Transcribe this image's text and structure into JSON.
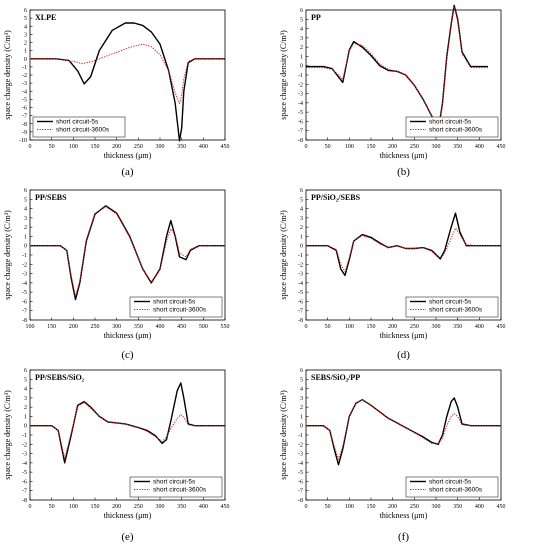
{
  "colors": {
    "series_5s": "#000000",
    "series_3600s": "#d62020"
  },
  "chart_data": [
    {
      "type": "line",
      "panel_title": "XLPE",
      "caption": "(a)",
      "xlabel": "thickness (μm)",
      "ylabel": "space charge density (C/m³)",
      "xlim": [
        0,
        450
      ],
      "xticks": [
        0,
        50,
        100,
        150,
        200,
        250,
        300,
        350,
        400,
        450
      ],
      "ylim": [
        -10,
        6
      ],
      "yticks": [
        -10,
        -9,
        -8,
        -7,
        -6,
        -5,
        -4,
        -3,
        -2,
        -1,
        0,
        1,
        2,
        3,
        4,
        5,
        6
      ],
      "legend_position": "bottom-left",
      "series": [
        {
          "name": "short circuit-5s",
          "x": [
            0,
            60,
            90,
            110,
            125,
            140,
            160,
            190,
            220,
            240,
            260,
            280,
            300,
            320,
            335,
            345,
            350,
            355,
            365,
            380,
            400,
            450
          ],
          "y": [
            0,
            0,
            -0.2,
            -1.5,
            -3.1,
            -2.2,
            1.0,
            3.5,
            4.4,
            4.4,
            4.1,
            3.3,
            1.8,
            -1.5,
            -5.5,
            -10.1,
            -8.5,
            -4.0,
            -0.5,
            0,
            0,
            0
          ]
        },
        {
          "name": "short circuit-3600s",
          "x": [
            0,
            60,
            100,
            120,
            140,
            170,
            200,
            230,
            260,
            280,
            300,
            320,
            335,
            345,
            350,
            355,
            365,
            380,
            400,
            450
          ],
          "y": [
            0,
            0,
            -0.3,
            -0.6,
            -0.4,
            0.2,
            0.8,
            1.4,
            1.8,
            1.5,
            0.5,
            -1.5,
            -4.2,
            -5.5,
            -4.5,
            -2.5,
            -0.3,
            0,
            0,
            0
          ]
        }
      ]
    },
    {
      "type": "line",
      "panel_title": "PP",
      "caption": "(b)",
      "xlabel": "thickness (μm)",
      "ylabel": "space charge density (C/m³)",
      "xlim": [
        0,
        450
      ],
      "xticks": [
        0,
        50,
        100,
        150,
        200,
        250,
        300,
        350,
        400,
        450
      ],
      "ylim": [
        -8,
        6
      ],
      "yticks": [
        -8,
        -7,
        -6,
        -5,
        -4,
        -3,
        -2,
        -1,
        0,
        1,
        2,
        3,
        4,
        5,
        6
      ],
      "legend_position": "bottom-right",
      "series": [
        {
          "name": "short circuit-5s",
          "x": [
            0,
            40,
            60,
            75,
            85,
            100,
            110,
            130,
            150,
            170,
            190,
            210,
            230,
            250,
            270,
            290,
            305,
            315,
            325,
            335,
            342,
            350,
            360,
            380,
            400,
            420
          ],
          "y": [
            -0.1,
            -0.1,
            -0.3,
            -1.2,
            -1.8,
            1.7,
            2.6,
            2.0,
            1.1,
            0,
            -0.5,
            -0.6,
            -1.0,
            -2.1,
            -3.6,
            -5.4,
            -7.1,
            -4.0,
            1.0,
            4.5,
            6.5,
            5.0,
            1.5,
            -0.1,
            -0.1,
            -0.1
          ]
        },
        {
          "name": "short circuit-3600s",
          "x": [
            0,
            40,
            60,
            75,
            85,
            100,
            110,
            130,
            150,
            170,
            190,
            210,
            230,
            250,
            270,
            290,
            305,
            315,
            325,
            335,
            342,
            350,
            360,
            380,
            400,
            420
          ],
          "y": [
            -0.2,
            -0.2,
            -0.4,
            -1.0,
            -1.5,
            1.6,
            2.4,
            2.2,
            1.3,
            0.2,
            -0.4,
            -0.6,
            -1.0,
            -2.1,
            -3.6,
            -5.4,
            -7.0,
            -4.2,
            0.8,
            4.3,
            6.3,
            4.8,
            1.3,
            -0.2,
            -0.2,
            -0.2
          ]
        }
      ]
    },
    {
      "type": "line",
      "panel_title": "PP/SEBS",
      "caption": "(c)",
      "xlabel": "thickness (μm)",
      "ylabel": "space charge density (C/m³)",
      "xlim": [
        100,
        550
      ],
      "xticks": [
        100,
        150,
        200,
        250,
        300,
        350,
        400,
        450,
        500,
        550
      ],
      "ylim": [
        -8,
        6
      ],
      "yticks": [
        -8,
        -7,
        -6,
        -5,
        -4,
        -3,
        -2,
        -1,
        0,
        1,
        2,
        3,
        4,
        5,
        6
      ],
      "legend_position": "bottom-right",
      "series": [
        {
          "name": "short circuit-5s",
          "x": [
            100,
            170,
            185,
            195,
            205,
            215,
            230,
            250,
            275,
            300,
            330,
            360,
            380,
            400,
            415,
            425,
            435,
            445,
            460,
            470,
            490,
            510,
            550
          ],
          "y": [
            0,
            0,
            -0.5,
            -3.5,
            -5.8,
            -4.0,
            0.5,
            3.4,
            4.3,
            3.5,
            1.0,
            -2.5,
            -4.0,
            -2.5,
            1.0,
            2.7,
            1.0,
            -1.2,
            -1.5,
            -0.5,
            0,
            0,
            0
          ]
        },
        {
          "name": "short circuit-3600s",
          "x": [
            100,
            170,
            185,
            195,
            205,
            215,
            230,
            250,
            275,
            300,
            330,
            360,
            380,
            400,
            415,
            425,
            435,
            445,
            460,
            470,
            490,
            510,
            550
          ],
          "y": [
            0,
            0,
            -0.5,
            -3.2,
            -5.4,
            -3.8,
            0.6,
            3.5,
            4.2,
            3.4,
            0.9,
            -2.5,
            -3.9,
            -2.6,
            0.5,
            1.8,
            1.2,
            -0.8,
            -1.2,
            -0.4,
            0,
            0,
            0
          ]
        }
      ]
    },
    {
      "type": "line",
      "panel_title": "PP/SiO₂/SEBS",
      "caption": "(d)",
      "xlabel": "thickness (μm)",
      "ylabel": "space charge density (C/m³)",
      "xlim": [
        0,
        450
      ],
      "xticks": [
        0,
        50,
        100,
        150,
        200,
        250,
        300,
        350,
        400,
        450
      ],
      "ylim": [
        -8,
        6
      ],
      "yticks": [
        -8,
        -7,
        -6,
        -5,
        -4,
        -3,
        -2,
        -1,
        0,
        1,
        2,
        3,
        4,
        5,
        6
      ],
      "legend_position": "bottom-right",
      "series": [
        {
          "name": "short circuit-5s",
          "x": [
            0,
            50,
            70,
            80,
            90,
            100,
            110,
            130,
            150,
            170,
            190,
            210,
            230,
            250,
            270,
            290,
            310,
            320,
            335,
            345,
            355,
            370,
            400,
            450
          ],
          "y": [
            0,
            0,
            -0.5,
            -2.5,
            -3.2,
            -1.5,
            0.5,
            1.2,
            0.9,
            0.3,
            -0.2,
            0,
            -0.3,
            -0.3,
            -0.2,
            -0.5,
            -1.4,
            -0.5,
            2.0,
            3.5,
            1.5,
            0,
            0,
            0
          ]
        },
        {
          "name": "short circuit-3600s",
          "x": [
            0,
            50,
            70,
            80,
            90,
            100,
            110,
            130,
            150,
            170,
            190,
            210,
            230,
            250,
            270,
            290,
            310,
            320,
            335,
            345,
            355,
            370,
            400,
            450
          ],
          "y": [
            0,
            0,
            -0.4,
            -2.0,
            -2.8,
            -1.3,
            0.5,
            1.1,
            0.8,
            0.2,
            -0.2,
            0,
            -0.3,
            -0.3,
            -0.2,
            -0.6,
            -1.5,
            -0.8,
            0.8,
            1.9,
            1.2,
            0.1,
            0,
            0
          ]
        }
      ]
    },
    {
      "type": "line",
      "panel_title": "PP/SEBS/SiO₂",
      "caption": "(e)",
      "xlabel": "thickness (μm)",
      "ylabel": "space charge density (C/m³)",
      "xlim": [
        0,
        450
      ],
      "xticks": [
        0,
        50,
        100,
        150,
        200,
        250,
        300,
        350,
        400,
        450
      ],
      "ylim": [
        -8,
        6
      ],
      "yticks": [
        -8,
        -7,
        -6,
        -5,
        -4,
        -3,
        -2,
        -1,
        0,
        1,
        2,
        3,
        4,
        5,
        6
      ],
      "legend_position": "bottom-right",
      "series": [
        {
          "name": "short circuit-5s",
          "x": [
            0,
            50,
            65,
            80,
            95,
            110,
            125,
            140,
            160,
            180,
            200,
            220,
            250,
            270,
            290,
            305,
            315,
            325,
            340,
            348,
            355,
            365,
            380,
            400,
            450
          ],
          "y": [
            0,
            0,
            -0.5,
            -4.0,
            -1.0,
            2.2,
            2.6,
            2.0,
            1.0,
            0.4,
            0.3,
            0.2,
            -0.2,
            -0.5,
            -1.1,
            -1.9,
            -1.5,
            0.5,
            3.8,
            4.6,
            3.0,
            0.2,
            0,
            0,
            0
          ]
        },
        {
          "name": "short circuit-3600s",
          "x": [
            0,
            50,
            65,
            80,
            95,
            110,
            125,
            140,
            160,
            180,
            200,
            220,
            250,
            270,
            290,
            305,
            315,
            325,
            340,
            348,
            355,
            365,
            380,
            400,
            450
          ],
          "y": [
            0,
            0,
            -0.5,
            -3.5,
            -0.8,
            2.1,
            2.5,
            1.9,
            1.0,
            0.4,
            0.3,
            0.2,
            -0.2,
            -0.6,
            -1.2,
            -1.7,
            -1.2,
            -0.3,
            0.8,
            1.2,
            0.9,
            0.1,
            0,
            0,
            0
          ]
        }
      ]
    },
    {
      "type": "line",
      "panel_title": "SEBS/SiO₂/PP",
      "caption": "(f)",
      "xlabel": "thickness (μm)",
      "ylabel": "space charge density (C/m³)",
      "xlim": [
        0,
        450
      ],
      "xticks": [
        0,
        50,
        100,
        150,
        200,
        250,
        300,
        350,
        400,
        450
      ],
      "ylim": [
        -8,
        6
      ],
      "yticks": [
        -8,
        -7,
        -6,
        -5,
        -4,
        -3,
        -2,
        -1,
        0,
        1,
        2,
        3,
        4,
        5,
        6
      ],
      "legend_position": "bottom-right",
      "series": [
        {
          "name": "short circuit-5s",
          "x": [
            0,
            40,
            55,
            65,
            75,
            85,
            100,
            115,
            130,
            150,
            170,
            190,
            210,
            230,
            250,
            270,
            290,
            305,
            315,
            325,
            335,
            342,
            350,
            360,
            380,
            400,
            450
          ],
          "y": [
            0,
            0,
            -0.5,
            -2.5,
            -4.2,
            -2.5,
            1.0,
            2.4,
            2.8,
            2.2,
            1.5,
            0.8,
            0.3,
            -0.2,
            -0.7,
            -1.2,
            -1.8,
            -2.0,
            -1.0,
            1.0,
            2.6,
            3.0,
            2.0,
            0.2,
            0,
            0,
            0
          ]
        },
        {
          "name": "short circuit-3600s",
          "x": [
            0,
            40,
            55,
            65,
            75,
            85,
            100,
            115,
            130,
            150,
            170,
            190,
            210,
            230,
            250,
            270,
            290,
            305,
            315,
            325,
            335,
            342,
            350,
            360,
            380,
            400,
            450
          ],
          "y": [
            0,
            0,
            -0.5,
            -2.2,
            -3.6,
            -2.2,
            1.0,
            2.4,
            2.8,
            2.2,
            1.5,
            0.8,
            0.3,
            -0.2,
            -0.7,
            -1.3,
            -1.9,
            -1.9,
            -1.3,
            0,
            1.0,
            1.3,
            1.0,
            0.1,
            0,
            0,
            0
          ]
        }
      ]
    }
  ]
}
